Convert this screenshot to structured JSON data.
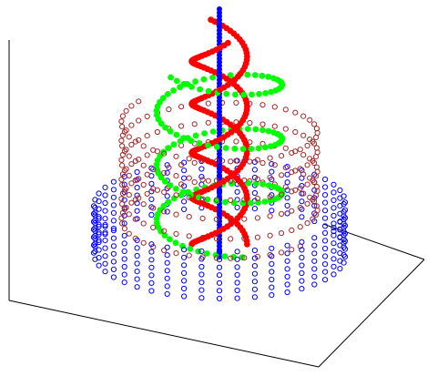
{
  "chart_data": {
    "type": "scatter3d",
    "title": "",
    "xlabel": "",
    "ylabel": "",
    "zlabel": "",
    "grid": false,
    "legend": "none",
    "series": [
      {
        "id": "blue-outer-helix",
        "kind": "helix",
        "color": "#0000ff",
        "marker": "open-circle",
        "radius": 1.0,
        "turns": 7,
        "z_range": [
          0.0,
          0.22
        ],
        "phase": 0.0,
        "direction": 1
      },
      {
        "id": "brown-middle-helix",
        "kind": "helix",
        "color": "#a52a2a",
        "marker": "open-circle",
        "radius": 0.78,
        "turns": 5.5,
        "z_range": [
          0.12,
          0.55
        ],
        "phase": 0.6,
        "direction": 1
      },
      {
        "id": "green-inner-helix",
        "kind": "helix",
        "color": "#00ff00",
        "marker": "filled-circle",
        "radius": 0.5,
        "turns": 3.2,
        "z_range": [
          0.08,
          0.78
        ],
        "phase": 1.2,
        "direction": 1
      },
      {
        "id": "red-strand-a",
        "kind": "helix",
        "color": "#ff0000",
        "marker": "filled-circle",
        "radius": 0.22,
        "turns": 2.3,
        "z_range": [
          0.05,
          0.92
        ],
        "phase": 0.0,
        "direction": -1
      },
      {
        "id": "red-strand-b",
        "kind": "helix",
        "color": "#ff0000",
        "marker": "filled-circle",
        "radius": 0.22,
        "turns": 2.3,
        "z_range": [
          0.05,
          0.9
        ],
        "phase": 3.14159,
        "direction": -1
      },
      {
        "id": "blue-central-axis",
        "kind": "line",
        "color": "#0000ff",
        "marker": "filled-circle",
        "z_range": [
          0.0,
          1.0
        ]
      }
    ]
  }
}
